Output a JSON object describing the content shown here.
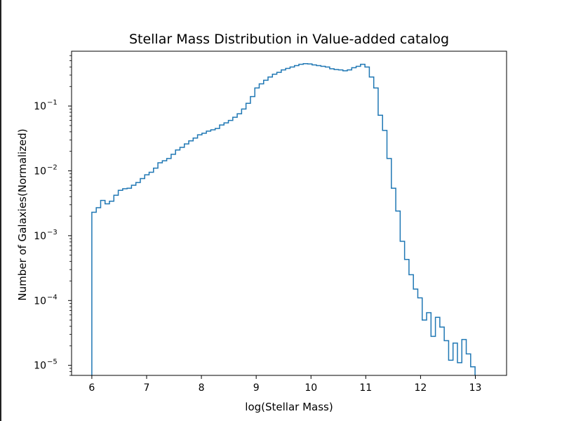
{
  "chart_data": {
    "type": "histogram",
    "title": "Stellar Mass Distribution in Value-added catalog",
    "xlabel": "log(Stellar Mass)",
    "ylabel": "Number of Galaxies(Normalized)",
    "y_scale": "log",
    "xlim": [
      5.63,
      13.57
    ],
    "ylim": [
      7e-06,
      0.7
    ],
    "grid": false,
    "legend": "none",
    "x_ticks": [
      "6",
      "7",
      "8",
      "9",
      "10",
      "11",
      "12",
      "13"
    ],
    "y_ticks": [
      {
        "base": "10",
        "exp": "−5",
        "value": 1e-05
      },
      {
        "base": "10",
        "exp": "−4",
        "value": 0.0001
      },
      {
        "base": "10",
        "exp": "−3",
        "value": 0.001
      },
      {
        "base": "10",
        "exp": "−2",
        "value": 0.01
      },
      {
        "base": "10",
        "exp": "−1",
        "value": 0.1
      }
    ],
    "series": [
      {
        "color": "#1f77b4",
        "bin_start": 6.0,
        "bin_width": 0.0804,
        "values": [
          0.0023,
          0.0027,
          0.0035,
          0.0031,
          0.0034,
          0.0042,
          0.005,
          0.0053,
          0.0054,
          0.006,
          0.0066,
          0.0076,
          0.0087,
          0.0095,
          0.011,
          0.0133,
          0.0143,
          0.0155,
          0.018,
          0.021,
          0.023,
          0.026,
          0.029,
          0.032,
          0.036,
          0.038,
          0.041,
          0.043,
          0.045,
          0.051,
          0.055,
          0.06,
          0.067,
          0.076,
          0.09,
          0.11,
          0.14,
          0.19,
          0.22,
          0.25,
          0.28,
          0.31,
          0.33,
          0.36,
          0.38,
          0.4,
          0.42,
          0.44,
          0.45,
          0.445,
          0.43,
          0.42,
          0.41,
          0.4,
          0.375,
          0.365,
          0.36,
          0.35,
          0.36,
          0.39,
          0.41,
          0.44,
          0.4,
          0.28,
          0.19,
          0.072,
          0.042,
          0.0155,
          0.0054,
          0.0024,
          0.00082,
          0.00043,
          0.00025,
          0.00015,
          0.00011,
          5e-05,
          6.5e-05,
          2.8e-05,
          5.5e-05,
          3.9e-05,
          2.4e-05,
          1.2e-05,
          2.2e-05,
          1.1e-05,
          2.5e-05,
          1.5e-05,
          9.5e-06,
          6e-06
        ]
      }
    ]
  }
}
